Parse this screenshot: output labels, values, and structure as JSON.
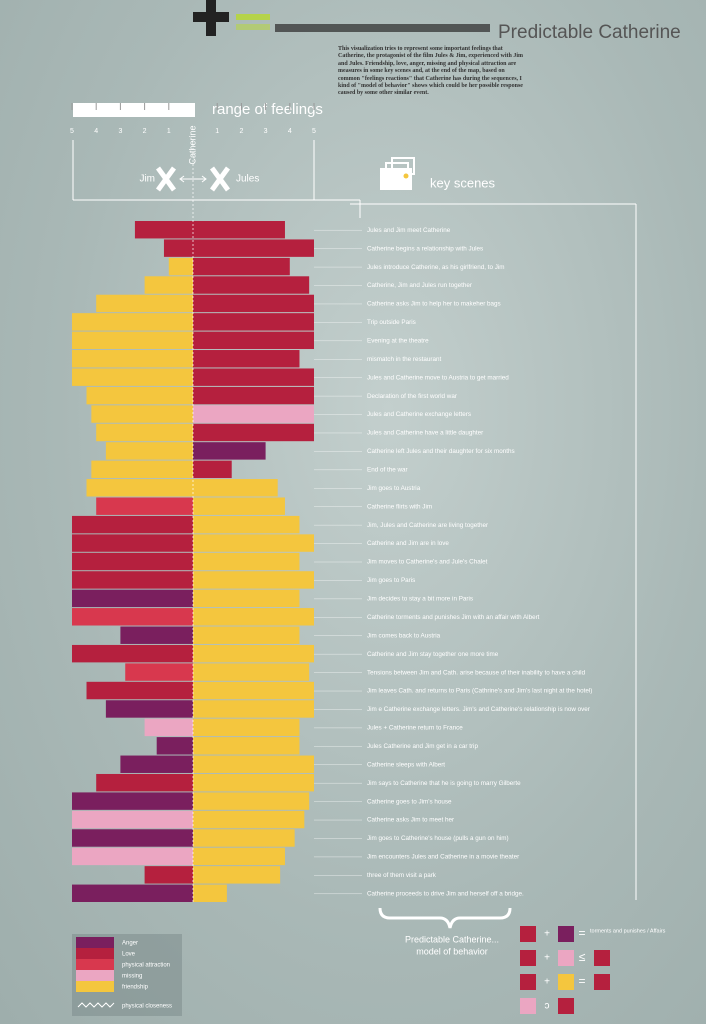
{
  "chart_data": {
    "type": "diverging-bar",
    "title": "Predictable Catherine",
    "description": "This visualization tries to represent some important feelings that Catherine, the protagonist of the film Jules & Jim, experienced with Jim and Jules. Friendship, love, anger, missing and physical attraction are measures in some key scenes and, at the end of the map, based on common \"feelings reactions\" that Catherine has during the sequences, I kind of \"model of behavior\" shows which could be her possible response caused by some other similar event.",
    "scale_title": "range of feelings",
    "center_label": "Catherine",
    "left_name": "Jim",
    "right_name": "Jules",
    "scenes_title": "key scenes",
    "xlim": [
      0,
      5
    ],
    "left_ticks": [
      5,
      4,
      3,
      2,
      1
    ],
    "right_ticks": [
      1,
      2,
      3,
      4,
      5
    ],
    "feelings": [
      {
        "name": "Anger",
        "color": "#7a1f5e"
      },
      {
        "name": "Love",
        "color": "#b5203e"
      },
      {
        "name": "physical attraction",
        "color": "#d8384e"
      },
      {
        "name": "missing",
        "color": "#eba6c2"
      },
      {
        "name": "friendship",
        "color": "#f4c63e"
      }
    ],
    "closeness_label": "physical closeness",
    "model_title": "Predictable Catherine...",
    "model_subtitle": "model of behavior",
    "model_note": "torments and punishes / Affairs",
    "scenes": [
      {
        "label": "Jules and Jim meet Catherine",
        "jim": 2.4,
        "jim_feeling": "Love",
        "jules": 3.8,
        "jules_feeling": "Love"
      },
      {
        "label": "Catherine begins a relationship with Jules",
        "jim": 1.2,
        "jim_feeling": "Love",
        "jules": 5,
        "jules_feeling": "Love"
      },
      {
        "label": "Jules introduce  Catherine, as his girlfriend, to Jim",
        "jim": 1,
        "jim_feeling": "friendship",
        "jules": 4,
        "jules_feeling": "Love"
      },
      {
        "label": "Catherine, Jim and Jules run together",
        "jim": 2,
        "jim_feeling": "friendship",
        "jules": 4.8,
        "jules_feeling": "Love"
      },
      {
        "label": "Catherine asks Jim to help her to makeher bags",
        "jim": 4,
        "jim_feeling": "friendship",
        "jules": 5,
        "jules_feeling": "Love"
      },
      {
        "label": "Trip outside Paris",
        "jim": 5,
        "jim_feeling": "friendship",
        "jules": 5,
        "jules_feeling": "Love"
      },
      {
        "label": "Evening at the theatre",
        "jim": 5,
        "jim_feeling": "friendship",
        "jules": 5,
        "jules_feeling": "Love"
      },
      {
        "label": "mismatch in the restaurant",
        "jim": 5,
        "jim_feeling": "friendship",
        "jules": 4.4,
        "jules_feeling": "Love"
      },
      {
        "label": "Jules and Catherine move to Austria to get married",
        "jim": 5,
        "jim_feeling": "friendship",
        "jules": 5,
        "jules_feeling": "Love"
      },
      {
        "label": "Declaration of the first world war",
        "jim": 4.4,
        "jim_feeling": "friendship",
        "jules": 5,
        "jules_feeling": "Love"
      },
      {
        "label": "Jules and Catherine exchange letters",
        "jim": 4.2,
        "jim_feeling": "friendship",
        "jules": 5,
        "jules_feeling": "missing"
      },
      {
        "label": "Jules and Catherine have a little daughter",
        "jim": 4,
        "jim_feeling": "friendship",
        "jules": 5,
        "jules_feeling": "Love"
      },
      {
        "label": "Catherine left Jules and their daughter for six months",
        "jim": 3.6,
        "jim_feeling": "friendship",
        "jules": 3,
        "jules_feeling": "Anger"
      },
      {
        "label": "End of the war",
        "jim": 4.2,
        "jim_feeling": "friendship",
        "jules": 1.6,
        "jules_feeling": "Love"
      },
      {
        "label": "Jim goes to Austria",
        "jim": 4.4,
        "jim_feeling": "friendship",
        "jules": 3.5,
        "jules_feeling": "friendship"
      },
      {
        "label": "Catherine flirts with Jim",
        "jim": 4,
        "jim_feeling": "physical attraction",
        "jules": 3.8,
        "jules_feeling": "friendship"
      },
      {
        "label": "Jim, Jules and Catherine are  living together",
        "jim": 5,
        "jim_feeling": "Love",
        "jules": 4.4,
        "jules_feeling": "friendship"
      },
      {
        "label": "Catherine and Jim are in love",
        "jim": 5,
        "jim_feeling": "Love",
        "jules": 5,
        "jules_feeling": "friendship"
      },
      {
        "label": "Jim moves to Catherine's and Jule's Chalet",
        "jim": 5,
        "jim_feeling": "Love",
        "jules": 4.4,
        "jules_feeling": "friendship"
      },
      {
        "label": "Jim goes  to Paris",
        "jim": 5,
        "jim_feeling": "Love",
        "jules": 5,
        "jules_feeling": "friendship"
      },
      {
        "label": "Jim decides to stay a bit more in Paris",
        "jim": 5,
        "jim_feeling": "Anger",
        "jules": 4.4,
        "jules_feeling": "friendship"
      },
      {
        "label": "Catherine torments and punishes Jim with an affair with Albert",
        "jim": 5,
        "jim_feeling": "physical attraction",
        "jules": 5,
        "jules_feeling": "friendship"
      },
      {
        "label": "Jim comes back to Austria",
        "jim": 3,
        "jim_feeling": "Anger",
        "jules": 4.4,
        "jules_feeling": "friendship"
      },
      {
        "label": "Catherine and Jim stay together one more time",
        "jim": 5,
        "jim_feeling": "Love",
        "jules": 5,
        "jules_feeling": "friendship"
      },
      {
        "label": "Tensions between Jim and Cath. arise because of their inability to have a child",
        "jim": 2.8,
        "jim_feeling": "physical attraction",
        "jules": 4.8,
        "jules_feeling": "friendship"
      },
      {
        "label": "Jim leaves Cath. and returns to Paris (Cathrine's and Jim's last night at the hotel)",
        "jim": 4.4,
        "jim_feeling": "Love",
        "jules": 5,
        "jules_feeling": "friendship"
      },
      {
        "label": "Jim e Catherine exchange letters. Jim's and Catherine's relationship is now over",
        "jim": 3.6,
        "jim_feeling": "Anger",
        "jules": 5,
        "jules_feeling": "friendship"
      },
      {
        "label": "Jules + Catherine  return to France",
        "jim": 2,
        "jim_feeling": "missing",
        "jules": 4.4,
        "jules_feeling": "friendship"
      },
      {
        "label": "Jules  Catherine and Jim get in a car trip",
        "jim": 1.5,
        "jim_feeling": "Anger",
        "jules": 4.4,
        "jules_feeling": "friendship"
      },
      {
        "label": "Catherine sleeps with Albert",
        "jim": 3,
        "jim_feeling": "Anger",
        "jules": 5,
        "jules_feeling": "friendship"
      },
      {
        "label": "Jim says to Catherine that he is going to marry Gilberte",
        "jim": 4,
        "jim_feeling": "Love",
        "jules": 5,
        "jules_feeling": "friendship"
      },
      {
        "label": "Catherine goes to Jim's house",
        "jim": 5,
        "jim_feeling": "Anger",
        "jules": 4.8,
        "jules_feeling": "friendship"
      },
      {
        "label": "Catherine asks Jim to meet her",
        "jim": 5,
        "jim_feeling": "missing",
        "jules": 4.6,
        "jules_feeling": "friendship"
      },
      {
        "label": "Jim goes to Catherine's house (pulls a gun on him)",
        "jim": 5,
        "jim_feeling": "Anger",
        "jules": 4.2,
        "jules_feeling": "friendship"
      },
      {
        "label": "Jim encounters Jules and Catherine in a movie theater",
        "jim": 5,
        "jim_feeling": "missing",
        "jules": 3.8,
        "jules_feeling": "friendship"
      },
      {
        "label": "three of them visit a park",
        "jim": 2,
        "jim_feeling": "Love",
        "jules": 3.6,
        "jules_feeling": "friendship"
      },
      {
        "label": "Catherine proceeds to drive Jim and herself off a bridge.",
        "jim": 5,
        "jim_feeling": "Anger",
        "jules": 1.4,
        "jules_feeling": "friendship"
      }
    ]
  }
}
